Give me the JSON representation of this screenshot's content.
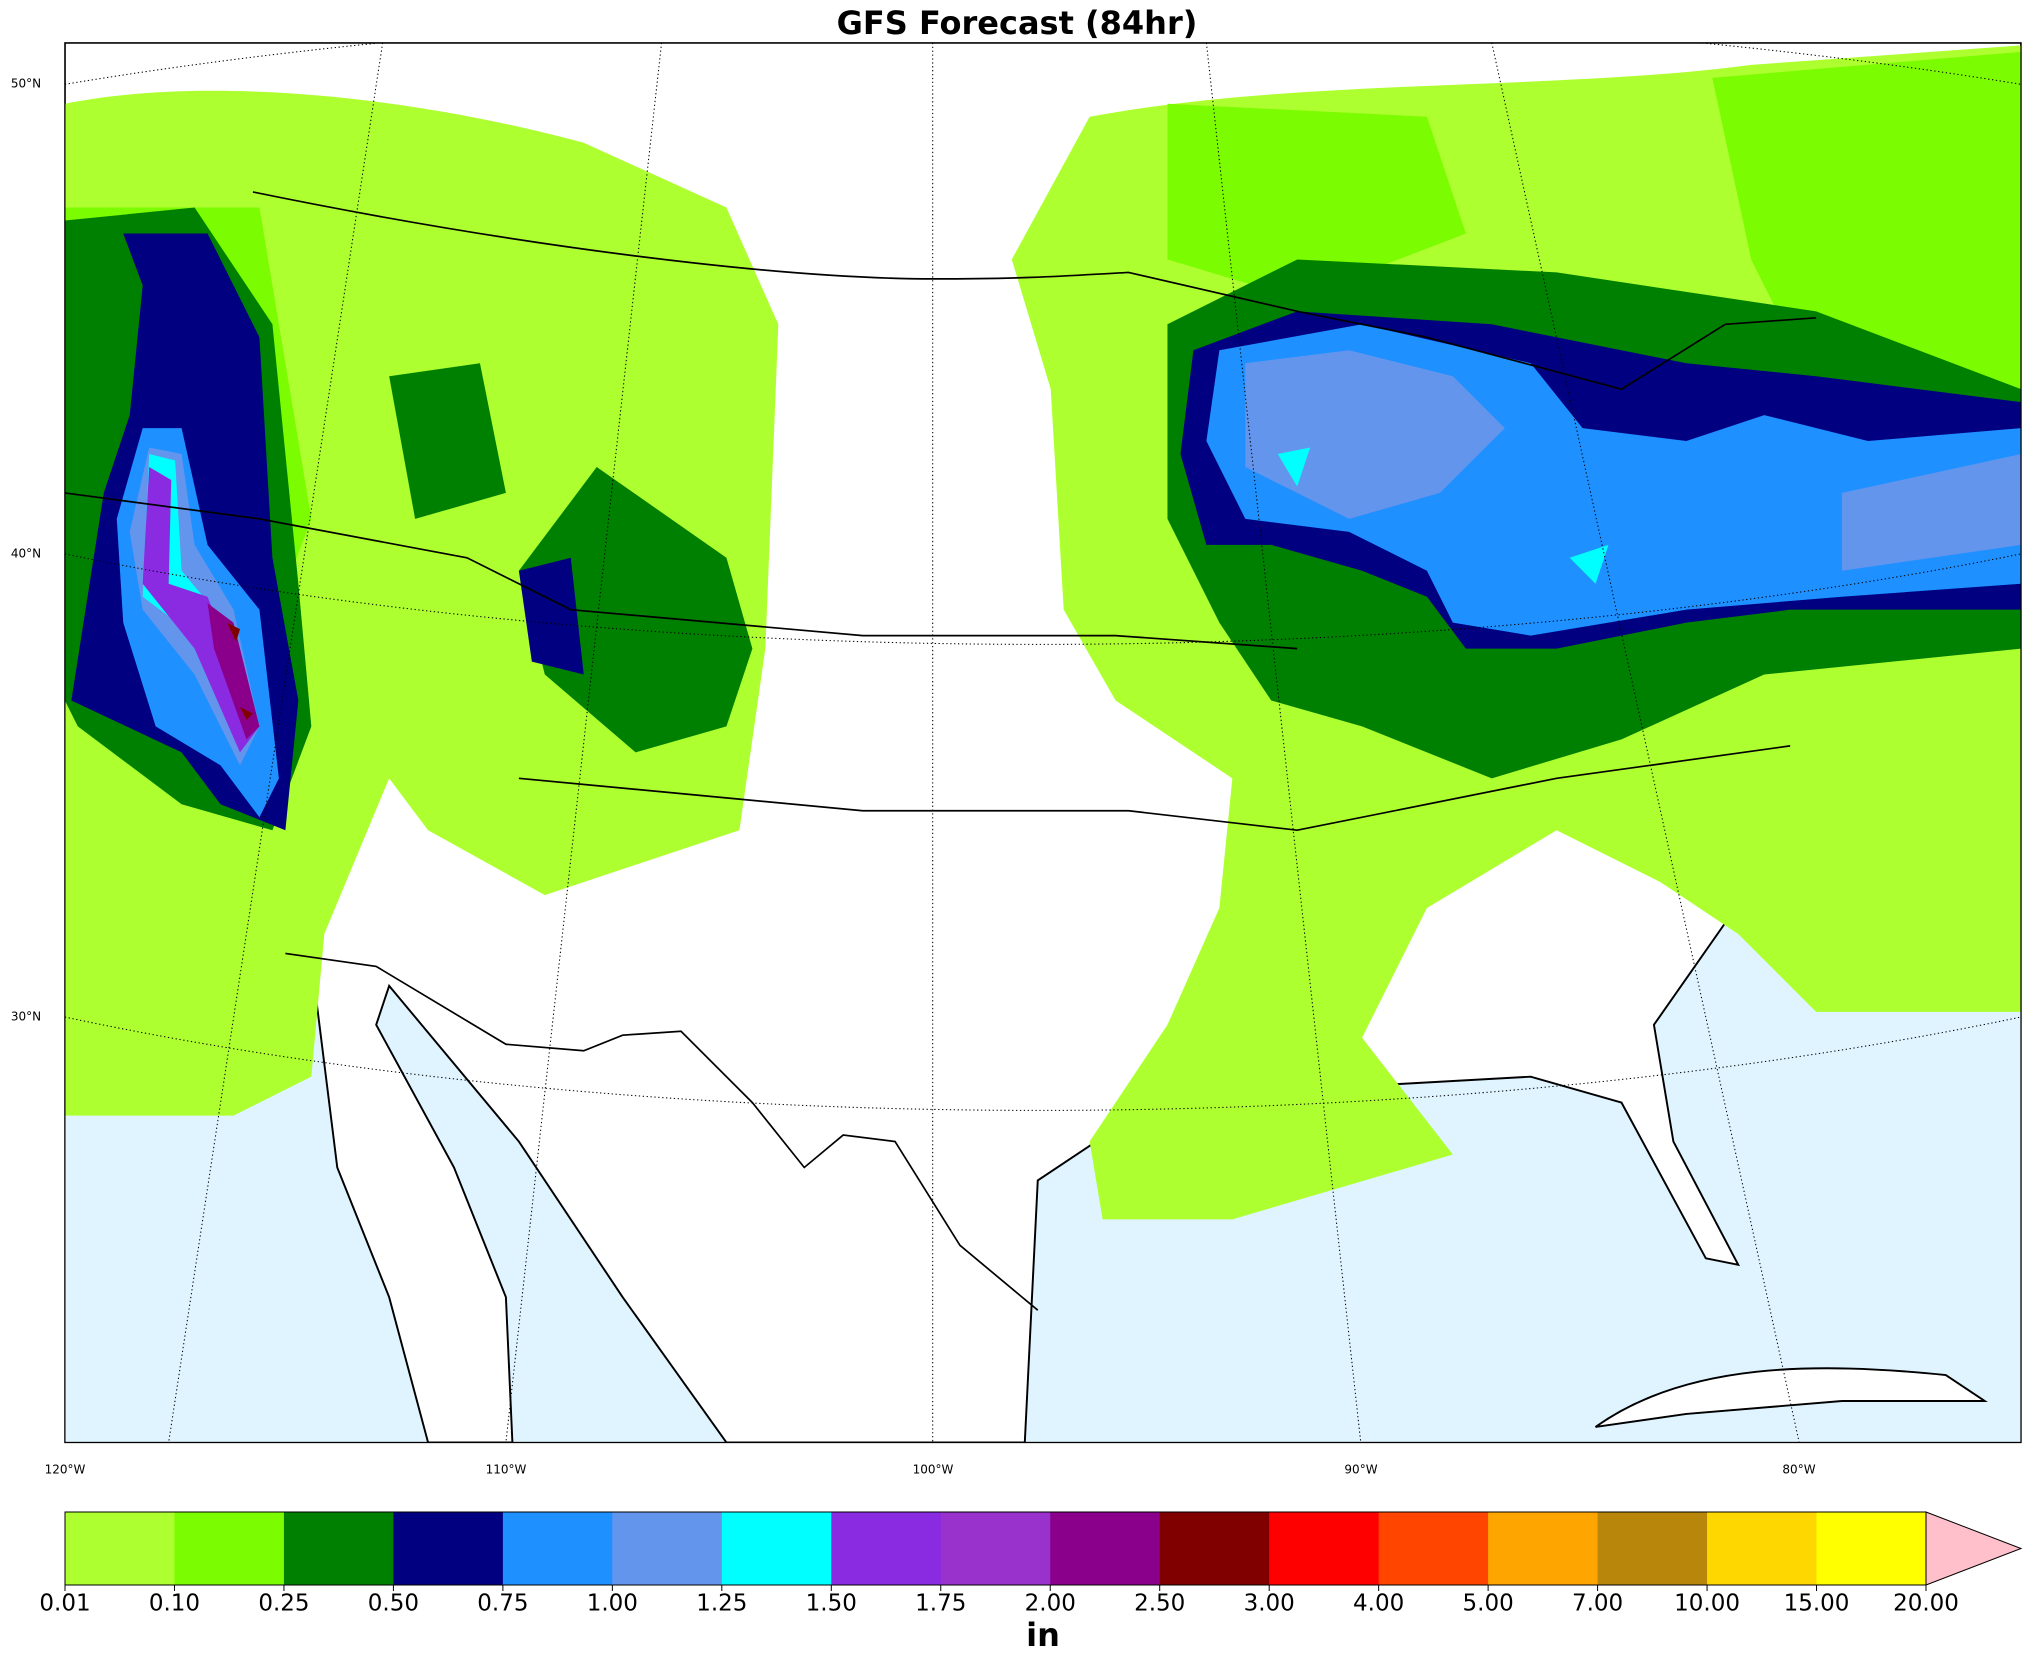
{
  "title": "GFS Forecast (84hr)",
  "lat_labels": [
    "50°N",
    "40°N",
    "30°N"
  ],
  "lon_labels": [
    "120°W",
    "110°W",
    "100°W",
    "90°W",
    "80°W"
  ],
  "colorbar": {
    "label": "in",
    "levels": [
      0.01,
      {
        "value": 0.1,
        "label": "0.10"
      },
      0.25,
      {
        "value": 0.5,
        "label": "0.50"
      },
      0.75,
      {
        "value": 1,
        "label": "1.00"
      },
      1.25,
      {
        "value": 1.5,
        "label": "1.50"
      },
      1.75,
      {
        "value": 2,
        "label": "2.00"
      },
      {
        "value": 2.5,
        "label": "2.50"
      },
      {
        "value": 3,
        "label": "3.00"
      },
      {
        "value": 4,
        "label": "4.00"
      },
      {
        "value": 5,
        "label": "5.00"
      },
      {
        "value": 7,
        "label": "7.00"
      },
      {
        "value": 10,
        "label": "10.00"
      },
      {
        "value": 15,
        "label": "15.00"
      },
      {
        "value": 20,
        "label": "20.00"
      }
    ],
    "colors": [
      "#adff2f",
      "#7cfc00",
      "#008000",
      "#000080",
      "#1e90ff",
      "#6495ed",
      "#00ffff",
      "#8a2be2",
      "#9932cc",
      "#8b008b",
      "#800000",
      "#ff0000",
      "#ff4500",
      "#ffa500",
      "#b8860b",
      "#ffd700",
      "#ffff00"
    ],
    "extend_color": "#ffc0cb"
  }
}
